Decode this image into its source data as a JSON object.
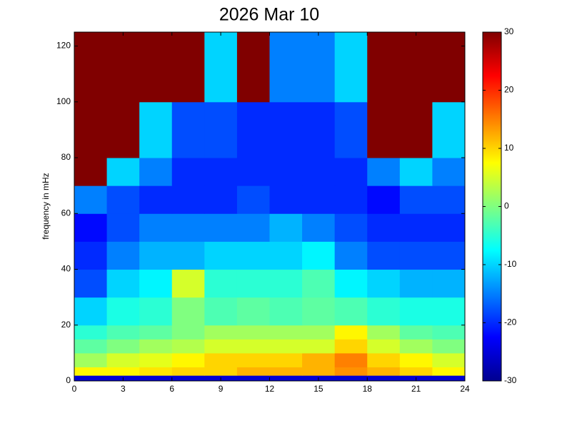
{
  "chart_data": {
    "type": "heatmap",
    "title": "2026 Mar 10",
    "y_label": "frequency in mHz",
    "colormap": "jet",
    "x_bins": [
      0,
      2,
      4,
      6,
      8,
      10,
      12,
      14,
      16,
      18,
      20,
      22,
      24
    ],
    "y_bins": [
      0,
      2,
      5,
      10,
      15,
      20,
      30,
      40,
      50,
      60,
      70,
      80,
      100,
      125
    ],
    "values": [
      [
        -25,
        -25,
        -25,
        -25,
        -25,
        -25,
        -25,
        -25,
        -25,
        -25,
        -25,
        -25
      ],
      [
        8,
        8,
        9,
        10,
        10,
        12,
        12,
        12,
        14,
        12,
        10,
        8
      ],
      [
        2,
        5,
        6,
        8,
        10,
        10,
        10,
        12,
        15,
        10,
        8,
        5
      ],
      [
        -2,
        0,
        2,
        3,
        5,
        5,
        5,
        5,
        10,
        5,
        2,
        0
      ],
      [
        -5,
        -3,
        -2,
        0,
        2,
        2,
        2,
        2,
        8,
        2,
        -2,
        -3
      ],
      [
        -10,
        -6,
        -5,
        0,
        -3,
        -2,
        -3,
        -2,
        -3,
        -5,
        -6,
        -6
      ],
      [
        -18,
        -10,
        -8,
        5,
        -5,
        -5,
        -5,
        -3,
        -8,
        -10,
        -12,
        -12
      ],
      [
        -20,
        -15,
        -12,
        -12,
        -10,
        -10,
        -10,
        -8,
        -15,
        -18,
        -18,
        -18
      ],
      [
        -22,
        -18,
        -15,
        -15,
        -15,
        -15,
        -12,
        -15,
        -18,
        -20,
        -20,
        -20
      ],
      [
        -15,
        -18,
        -20,
        -20,
        -20,
        -18,
        -20,
        -20,
        -20,
        -22,
        -18,
        -18
      ],
      [
        30,
        -10,
        -15,
        -20,
        -20,
        -20,
        -20,
        -20,
        -20,
        -15,
        -10,
        -15
      ],
      [
        30,
        30,
        -10,
        -18,
        -18,
        -20,
        -20,
        -20,
        -18,
        30,
        30,
        -10
      ],
      [
        30,
        30,
        30,
        30,
        -10,
        30,
        -15,
        -15,
        -10,
        30,
        30,
        30
      ]
    ],
    "xlim": [
      0,
      24
    ],
    "xticks": [
      0,
      3,
      6,
      9,
      12,
      15,
      18,
      21,
      24
    ],
    "ylim": [
      0,
      125
    ],
    "yticks": [
      0,
      20,
      40,
      60,
      80,
      100,
      120
    ],
    "clim": [
      -30,
      30
    ],
    "cticks": [
      -30,
      -20,
      -10,
      0,
      10,
      20,
      30
    ]
  }
}
